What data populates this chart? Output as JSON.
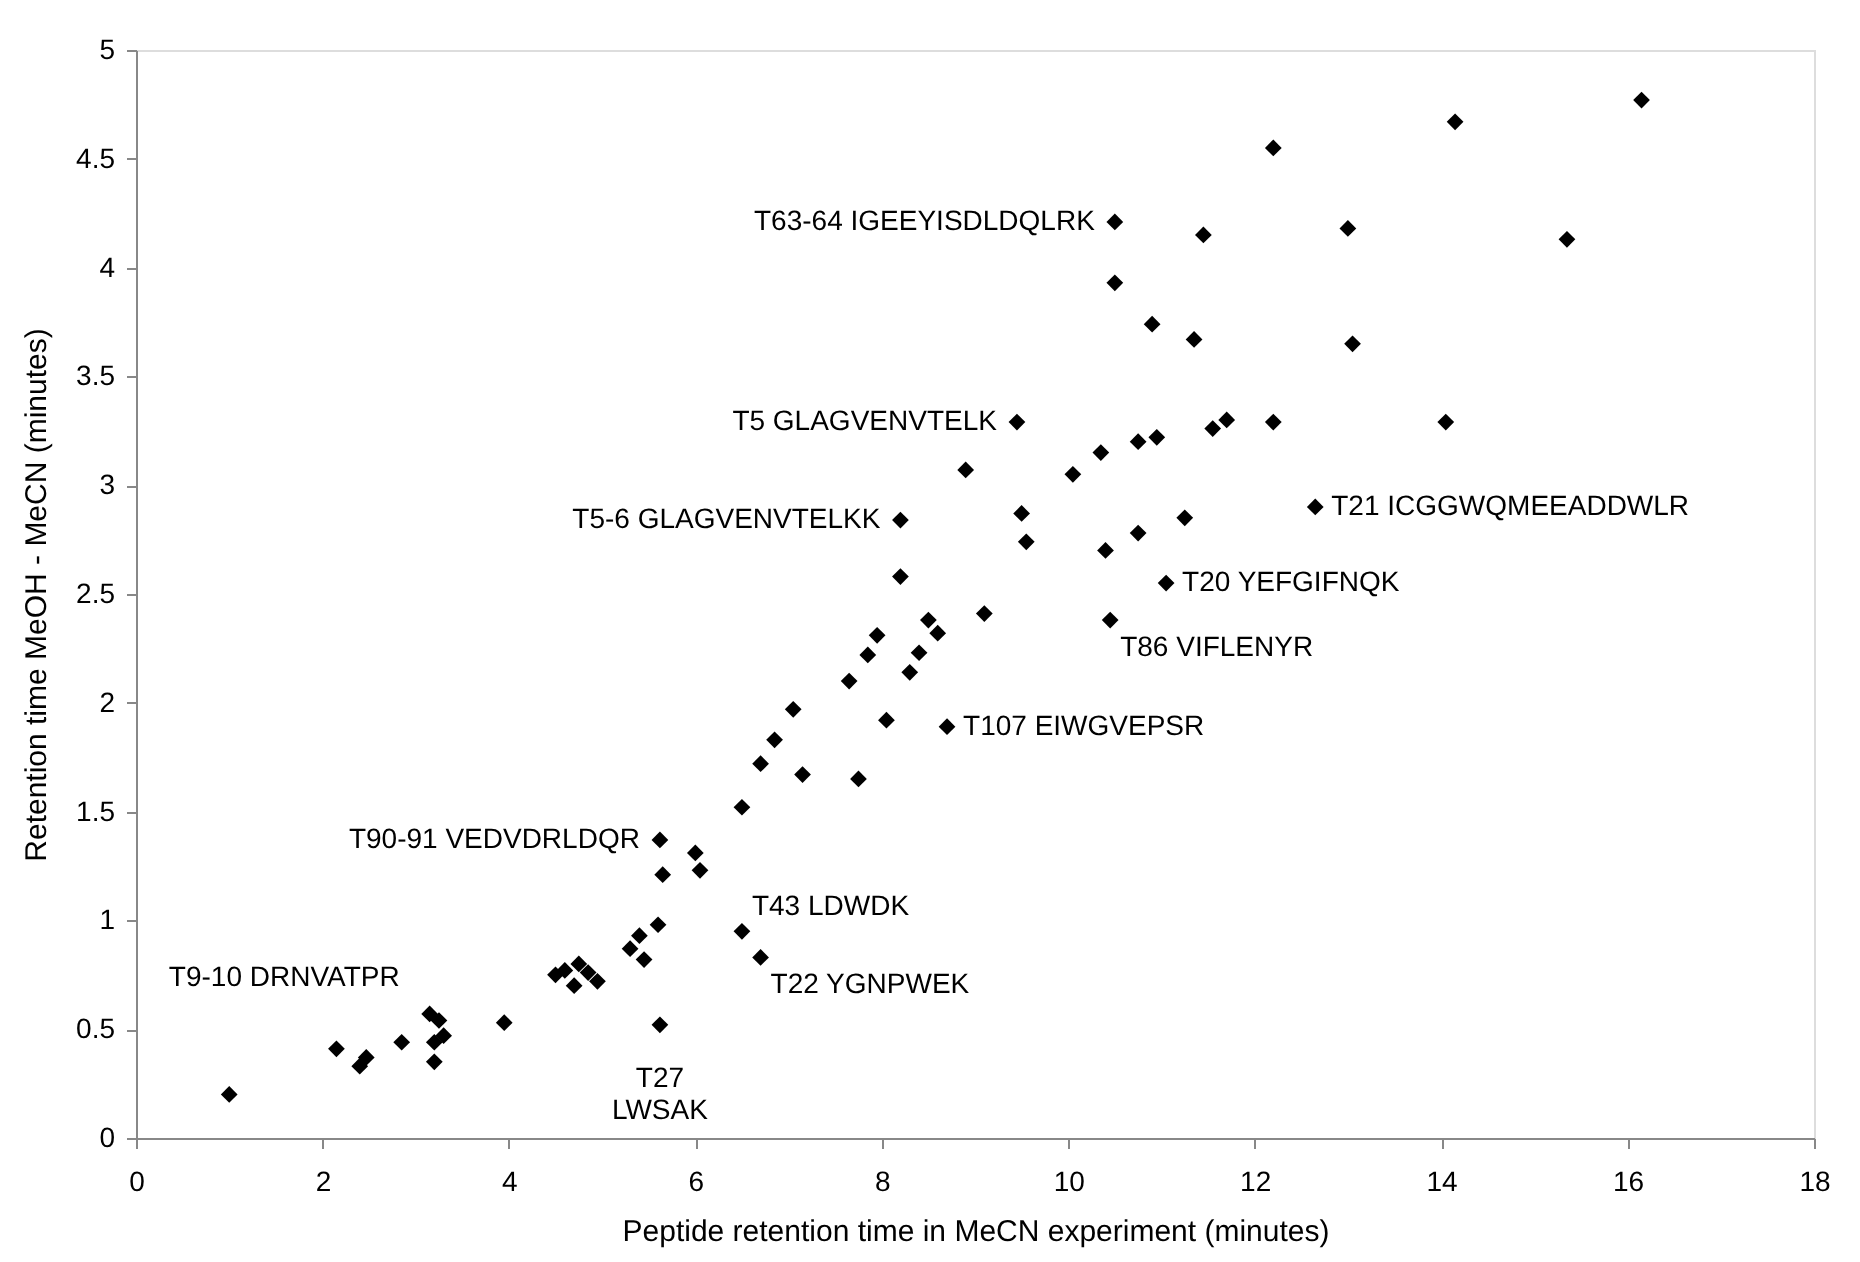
{
  "chart_data": {
    "type": "scatter",
    "xlabel": "Peptide retention time in MeCN experiment (minutes)",
    "ylabel": "Retention time MeOH - MeCN (minutes)",
    "x": [
      1.0,
      2.15,
      2.4,
      2.47,
      2.85,
      3.15,
      3.25,
      3.3,
      3.2,
      3.2,
      3.95,
      4.5,
      4.6,
      4.7,
      4.75,
      4.85,
      4.95,
      5.3,
      5.4,
      5.45,
      5.6,
      5.62,
      5.65,
      6.0,
      6.05,
      5.62,
      6.5,
      6.7,
      6.5,
      6.7,
      6.85,
      7.05,
      7.15,
      7.75,
      7.65,
      7.85,
      7.95,
      8.05,
      8.2,
      8.2,
      8.3,
      8.4,
      8.5,
      8.6,
      8.7,
      8.9,
      9.1,
      9.45,
      9.5,
      9.55,
      10.05,
      10.35,
      10.4,
      10.45,
      10.75,
      10.75,
      10.95,
      11.05,
      11.25,
      10.5,
      10.5,
      10.9,
      11.35,
      11.45,
      11.55,
      11.7,
      12.2,
      12.2,
      12.65,
      13.0,
      13.05,
      14.05,
      14.15,
      15.35,
      16.15
    ],
    "values": [
      0.2,
      0.41,
      0.33,
      0.37,
      0.44,
      0.57,
      0.54,
      0.47,
      0.44,
      0.35,
      0.53,
      0.75,
      0.77,
      0.7,
      0.8,
      0.76,
      0.72,
      0.87,
      0.93,
      0.82,
      0.98,
      1.37,
      1.21,
      1.31,
      1.23,
      0.52,
      0.95,
      0.83,
      1.52,
      1.72,
      1.83,
      1.97,
      1.67,
      1.65,
      2.1,
      2.22,
      2.31,
      1.92,
      2.58,
      2.84,
      2.14,
      2.23,
      2.38,
      2.32,
      1.89,
      3.07,
      2.41,
      3.29,
      2.87,
      2.74,
      3.05,
      3.15,
      2.7,
      2.38,
      3.2,
      2.78,
      3.22,
      2.55,
      2.85,
      4.21,
      3.93,
      3.74,
      3.67,
      4.15,
      3.26,
      3.3,
      3.29,
      4.55,
      2.9,
      4.18,
      3.65,
      3.29,
      4.67,
      4.13,
      4.77
    ],
    "color": "#000000",
    "marker": "diamond",
    "xlim": [
      0,
      18
    ],
    "xticks": [
      0,
      2,
      4,
      6,
      8,
      10,
      12,
      14,
      16,
      18
    ],
    "ylim": [
      0,
      5
    ],
    "yticks": [
      0,
      0.5,
      1,
      1.5,
      2,
      2.5,
      3,
      3.5,
      4,
      4.5,
      5
    ],
    "grid": false,
    "annotations": [
      {
        "text": "T63-64 IGEEYISDLDQLRK",
        "x": 10.5,
        "y": 4.21
      },
      {
        "text": "T5 GLAGVENVTELK",
        "x": 9.45,
        "y": 3.29
      },
      {
        "text": "T5-6 GLAGVENVTELKK",
        "x": 8.2,
        "y": 2.84
      },
      {
        "text": "T21 ICGGWQMEEADDWLR",
        "x": 12.65,
        "y": 2.9
      },
      {
        "text": "T20 YEFGIFNQK",
        "x": 11.05,
        "y": 2.55
      },
      {
        "text": "T86 VIFLENYR",
        "x": 10.45,
        "y": 2.38
      },
      {
        "text": "T107 EIWGVEPSR",
        "x": 8.7,
        "y": 1.89
      },
      {
        "text": "T90-91 VEDVDRLDQR",
        "x": 5.62,
        "y": 1.37
      },
      {
        "text": "T43 LDWDK",
        "x": 6.5,
        "y": 0.95
      },
      {
        "text": "T22 YGNPWEK",
        "x": 6.7,
        "y": 0.83
      },
      {
        "text": "T9-10 DRNVATPR",
        "x": 3.15,
        "y": 0.57
      },
      {
        "text": "T27 LWSAK",
        "x": 5.62,
        "y": 0.52
      }
    ]
  }
}
